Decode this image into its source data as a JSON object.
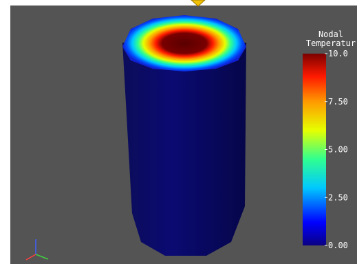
{
  "colorbar": {
    "title_lines": [
      "Nodal",
      "Temperatur"
    ],
    "range": [
      0,
      10
    ],
    "ticks": [
      {
        "value": 10,
        "label": "10.0"
      },
      {
        "value": 7.5,
        "label": "7.50"
      },
      {
        "value": 5,
        "label": "5.00"
      },
      {
        "value": 2.5,
        "label": "2.50"
      },
      {
        "value": 0,
        "label": "0.00"
      }
    ]
  }
}
